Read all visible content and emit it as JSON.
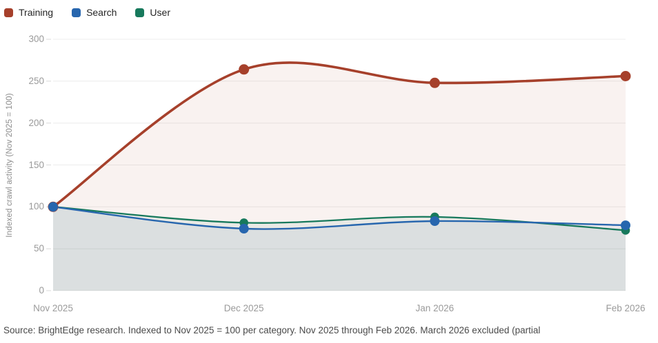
{
  "chart_data": {
    "type": "line",
    "categories": [
      "Nov 2025",
      "Dec 2025",
      "Jan 2026",
      "Feb 2026"
    ],
    "series": [
      {
        "name": "Training",
        "color": "#A6402B",
        "values": [
          100,
          264,
          248,
          256
        ]
      },
      {
        "name": "Search",
        "color": "#2766AE",
        "values": [
          100,
          74,
          83,
          78
        ]
      },
      {
        "name": "User",
        "color": "#17795C",
        "values": [
          100,
          81,
          88,
          72
        ]
      }
    ],
    "ylabel": "Indexed crawl activity (Nov 2025 = 100)",
    "yticks": [
      0,
      50,
      100,
      150,
      200,
      250,
      300
    ],
    "ylim": [
      0,
      300
    ],
    "grid": "horizontal",
    "gridline_color": "#ECECEC",
    "tick_color": "#D9D9D9",
    "area_fill_opacity": 0.07,
    "point_markers": true,
    "legend_position": "top-left"
  },
  "footer": {
    "source_text": "Source: BrightEdge research. Indexed to Nov 2025 = 100 per category. Nov 2025 through Feb 2026. March 2026 excluded (partial"
  }
}
